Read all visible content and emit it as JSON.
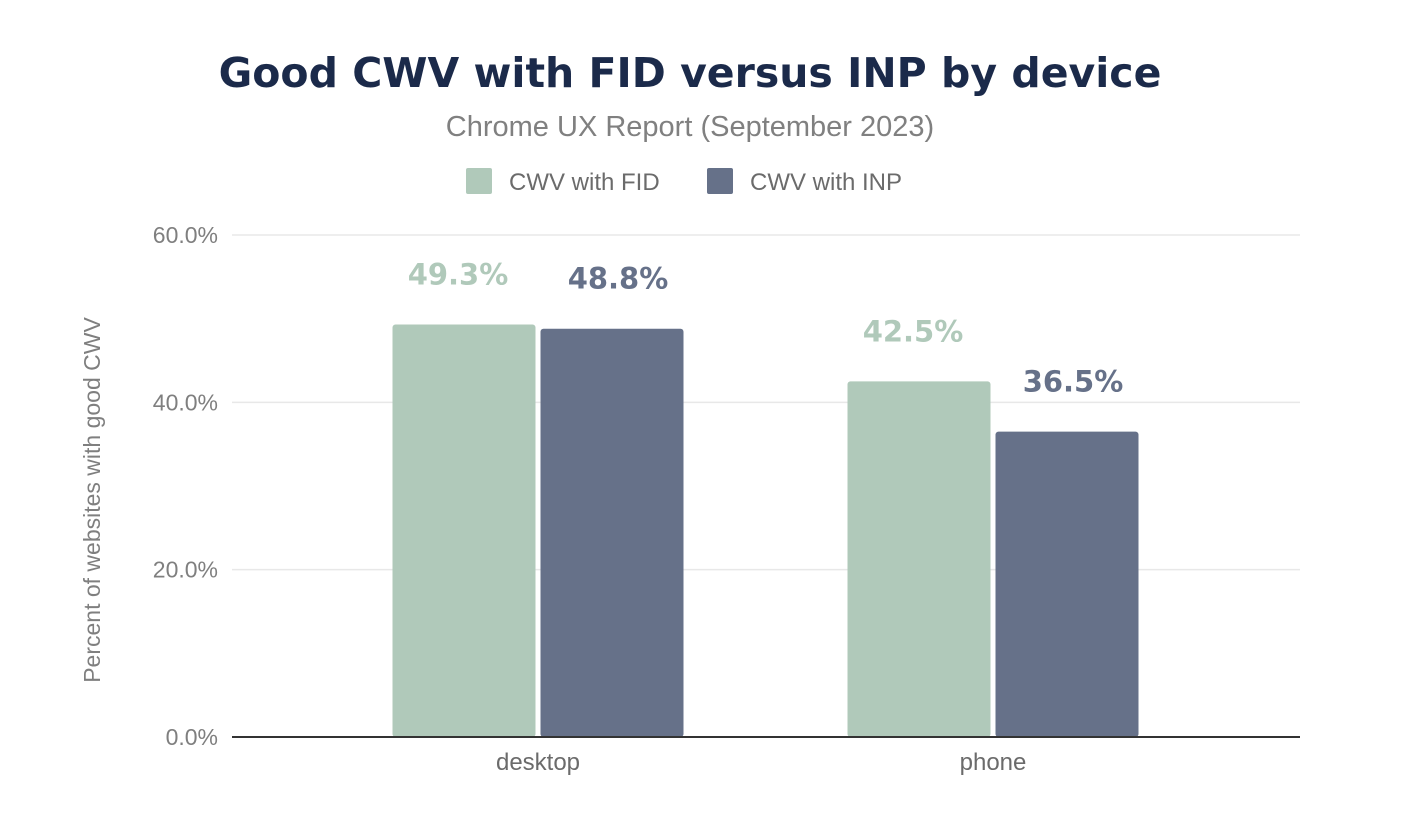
{
  "chart_data": {
    "type": "bar",
    "title": "Good CWV with FID versus INP by device",
    "subtitle": "Chrome UX Report (September 2023)",
    "categories": [
      "desktop",
      "phone"
    ],
    "series": [
      {
        "name": "CWV with FID",
        "color": "#b0c9ba",
        "values": [
          49.3,
          42.5
        ]
      },
      {
        "name": "CWV with INP",
        "color": "#667189",
        "values": [
          48.8,
          36.5
        ]
      }
    ],
    "data_labels": [
      [
        "49.3%",
        "42.5%"
      ],
      [
        "48.8%",
        "36.5%"
      ]
    ],
    "xlabel": "",
    "ylabel": "Percent of websites with good CWV",
    "ylim": [
      0,
      60
    ],
    "yticks": [
      0,
      20,
      40,
      60
    ],
    "ytick_labels": [
      "0.0%",
      "20.0%",
      "40.0%",
      "60.0%"
    ],
    "grid": true,
    "legend_position": "top-center"
  }
}
